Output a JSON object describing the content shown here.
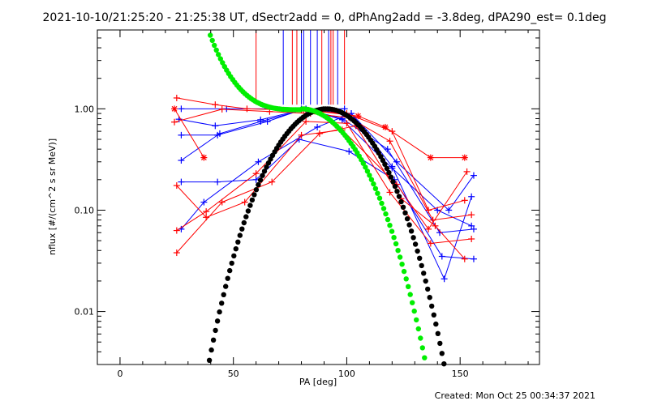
{
  "chart_data": {
    "type": "scatter",
    "title": "2021-10-10/21:25:20 - 21:25:38 UT, dSectr2add = 0, dPhAng2add = -3.8deg, dPA290_est=  0.1deg",
    "xlabel": "PA [deg]",
    "ylabel": "nflux [#/(cm^2 s sr MeV)]",
    "xlim": [
      -10,
      185
    ],
    "ylim": [
      0.003,
      6
    ],
    "yscale": "log",
    "x_ticks": [
      0,
      50,
      100,
      150
    ],
    "x_tick_labels": [
      "0",
      "50",
      "100",
      "150"
    ],
    "y_ticks": [
      0.01,
      0.1,
      1.0
    ],
    "y_tick_labels": [
      "0.01",
      "0.10",
      "1.00"
    ],
    "grid": false,
    "colors": {
      "red": "#ff0000",
      "blue": "#0000ff",
      "green": "#00ee00",
      "black": "#000000"
    },
    "vertical_markers": [
      {
        "x": 60,
        "color": "#ff0000"
      },
      {
        "x": 72,
        "color": "#0000ff"
      },
      {
        "x": 76,
        "color": "#ff0000"
      },
      {
        "x": 78,
        "color": "#ff0000"
      },
      {
        "x": 80,
        "color": "#0000ff"
      },
      {
        "x": 81,
        "color": "#0000ff"
      },
      {
        "x": 84,
        "color": "#0000ff"
      },
      {
        "x": 87,
        "color": "#0000ff"
      },
      {
        "x": 89,
        "color": "#ff0000"
      },
      {
        "x": 92,
        "color": "#0000ff"
      },
      {
        "x": 93,
        "color": "#ff0000"
      },
      {
        "x": 94,
        "color": "#ff0000"
      },
      {
        "x": 96,
        "color": "#0000ff"
      },
      {
        "x": 99,
        "color": "#ff0000"
      }
    ],
    "series": [
      {
        "color": "#0000ff",
        "marker": "plus",
        "x": [
          27,
          47,
          80,
          99
        ],
        "y": [
          1.0,
          1.0,
          1.0,
          1.0
        ]
      },
      {
        "color": "#0000ff",
        "marker": "plus",
        "x": [
          26,
          42,
          62,
          82,
          98,
          120,
          140,
          155
        ],
        "y": [
          0.79,
          0.68,
          0.78,
          1.0,
          0.78,
          0.26,
          0.1,
          0.07
        ]
      },
      {
        "color": "#0000ff",
        "marker": "plus",
        "x": [
          27,
          43,
          65,
          80,
          102,
          122,
          145,
          156
        ],
        "y": [
          0.55,
          0.55,
          0.75,
          0.98,
          0.9,
          0.3,
          0.1,
          0.22
        ]
      },
      {
        "color": "#0000ff",
        "marker": "plus",
        "x": [
          27,
          44,
          62,
          82,
          98,
          118,
          141,
          156
        ],
        "y": [
          0.31,
          0.57,
          0.75,
          0.99,
          0.8,
          0.4,
          0.06,
          0.065
        ]
      },
      {
        "color": "#0000ff",
        "marker": "plus",
        "x": [
          27,
          43,
          60,
          79,
          101,
          121,
          142,
          156
        ],
        "y": [
          0.19,
          0.19,
          0.2,
          0.5,
          0.38,
          0.2,
          0.035,
          0.033
        ]
      },
      {
        "color": "#0000ff",
        "marker": "plus",
        "x": [
          27,
          37,
          61,
          87,
          102,
          120,
          143,
          155
        ],
        "y": [
          0.065,
          0.12,
          0.3,
          0.66,
          0.9,
          0.27,
          0.021,
          0.136
        ]
      },
      {
        "color": "#ff0000",
        "marker": "plus",
        "x": [
          25,
          42,
          56,
          80,
          100,
          120,
          136,
          152
        ],
        "y": [
          1.28,
          1.1,
          1.0,
          0.97,
          0.9,
          0.6,
          0.1,
          0.125
        ]
      },
      {
        "color": "#ff0000",
        "marker": "plus",
        "x": [
          24,
          45,
          66,
          84,
          101,
          119,
          138,
          155
        ],
        "y": [
          0.74,
          0.99,
          0.94,
          0.9,
          0.82,
          0.48,
          0.08,
          0.09
        ]
      },
      {
        "color": "#ff0000",
        "marker": "star",
        "x": [
          24,
          37
        ],
        "y": [
          1.0,
          0.33
        ]
      },
      {
        "color": "#ff0000",
        "marker": "star",
        "x": [
          81,
          105,
          117,
          137,
          152
        ],
        "y": [
          0.98,
          0.85,
          0.66,
          0.33,
          0.33
        ]
      },
      {
        "color": "#ff0000",
        "marker": "plus",
        "x": [
          25,
          38,
          55,
          80,
          98,
          122,
          136,
          153
        ],
        "y": [
          0.175,
          0.085,
          0.12,
          0.55,
          0.62,
          0.18,
          0.065,
          0.24
        ]
      },
      {
        "color": "#ff0000",
        "marker": "plus",
        "x": [
          25,
          38,
          60,
          82,
          100,
          119,
          137,
          155
        ],
        "y": [
          0.063,
          0.097,
          0.23,
          0.75,
          0.72,
          0.15,
          0.047,
          0.052
        ]
      },
      {
        "color": "#ff0000",
        "marker": "plus",
        "x": [
          25,
          45,
          67,
          88,
          104,
          124,
          139,
          152
        ],
        "y": [
          0.038,
          0.12,
          0.19,
          0.57,
          0.68,
          0.13,
          0.07,
          0.033
        ]
      }
    ],
    "green_fit": {
      "color": "#00ee00",
      "x_range": [
        20,
        141
      ],
      "peak_x": 80
    },
    "black_fit": {
      "color": "#000000",
      "x_range": [
        34,
        147
      ],
      "peak_x": 91
    }
  },
  "footer": {
    "created": "Created: Mon Oct 25 00:34:37 2021"
  }
}
